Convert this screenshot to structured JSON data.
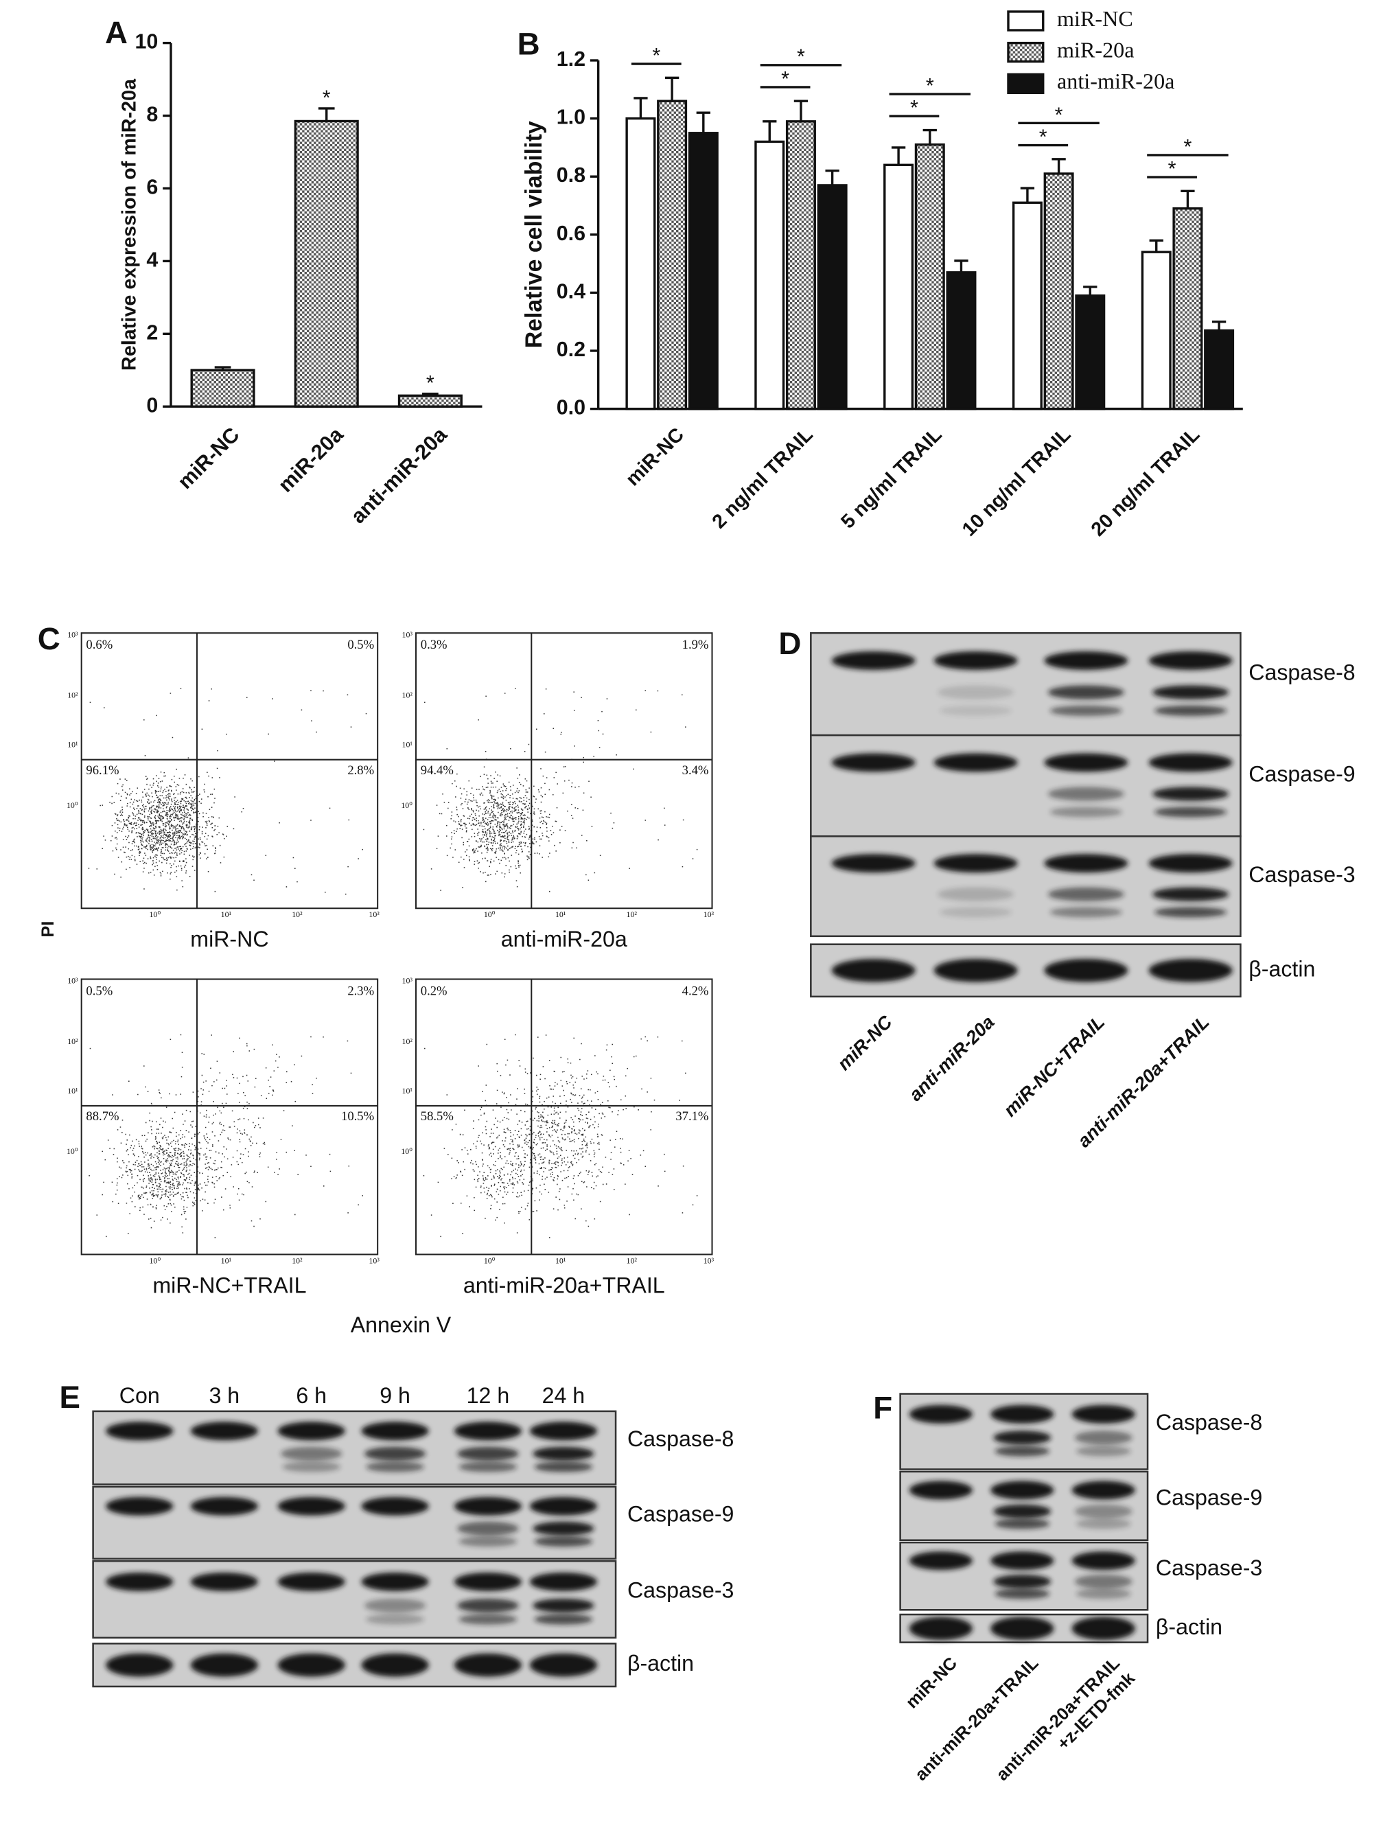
{
  "chart_data": [
    {
      "type": "bar",
      "panel": "A",
      "ylabel": "Relative expression of miR-20a",
      "categories": [
        "miR-NC",
        "miR-20a",
        "anti-miR-20a"
      ],
      "values": [
        1.0,
        7.85,
        0.3
      ],
      "errors": [
        0.08,
        0.35,
        0.05
      ],
      "color": "#555555",
      "pattern": "checkerboard",
      "ylim": [
        0,
        10
      ],
      "yticks": [
        0,
        2,
        4,
        6,
        8,
        10
      ],
      "annotations": [
        {
          "text": "*",
          "category": "miR-20a"
        },
        {
          "text": "*",
          "category": "anti-miR-20a"
        }
      ]
    },
    {
      "type": "grouped_bar",
      "panel": "B",
      "ylabel": "Relative cell viability",
      "categories": [
        "miR-NC",
        "2 ng/ml TRAIL",
        "5 ng/ml TRAIL",
        "10 ng/ml TRAIL",
        "20 ng/ml TRAIL"
      ],
      "series": [
        {
          "name": "miR-NC",
          "color": "#ffffff",
          "values": [
            1.0,
            0.92,
            0.84,
            0.71,
            0.54
          ],
          "errors": [
            0.07,
            0.07,
            0.06,
            0.05,
            0.04
          ]
        },
        {
          "name": "miR-20a",
          "color": "#555555",
          "pattern": "checkerboard",
          "values": [
            1.06,
            0.99,
            0.91,
            0.81,
            0.69
          ],
          "errors": [
            0.08,
            0.07,
            0.05,
            0.05,
            0.06
          ]
        },
        {
          "name": "anti-miR-20a",
          "color": "#111111",
          "values": [
            0.95,
            0.77,
            0.47,
            0.39,
            0.27
          ],
          "errors": [
            0.07,
            0.05,
            0.04,
            0.03,
            0.03
          ]
        }
      ],
      "ylim": [
        0,
        1.2
      ],
      "yticks": [
        {
          "value": 0,
          "label": "0.0"
        },
        0.2,
        0.4,
        0.6,
        0.8,
        {
          "value": 1,
          "label": "1.0"
        },
        1.2
      ],
      "legend": "top-right",
      "annotations": [
        {
          "text": "*",
          "category": "miR-NC",
          "between": [
            "miR-NC",
            "miR-20a"
          ]
        },
        {
          "text": "*",
          "category": "2 ng/ml TRAIL",
          "between": [
            "miR-NC",
            "miR-20a"
          ]
        },
        {
          "text": "*",
          "category": "2 ng/ml TRAIL",
          "between": [
            "miR-NC",
            "anti-miR-20a"
          ]
        },
        {
          "text": "*",
          "category": "5 ng/ml TRAIL",
          "between": [
            "miR-NC",
            "miR-20a"
          ]
        },
        {
          "text": "*",
          "category": "5 ng/ml TRAIL",
          "between": [
            "miR-NC",
            "anti-miR-20a"
          ]
        },
        {
          "text": "*",
          "category": "10 ng/ml TRAIL",
          "between": [
            "miR-NC",
            "miR-20a"
          ]
        },
        {
          "text": "*",
          "category": "10 ng/ml TRAIL",
          "between": [
            "miR-NC",
            "anti-miR-20a"
          ]
        },
        {
          "text": "*",
          "category": "20 ng/ml TRAIL",
          "between": [
            "miR-NC",
            "miR-20a"
          ]
        },
        {
          "text": "*",
          "category": "20 ng/ml TRAIL",
          "between": [
            "miR-NC",
            "anti-miR-20a"
          ]
        }
      ]
    }
  ],
  "flow_cytometry": {
    "panel": "C",
    "ylabel": "PI",
    "xlabel": "Annexin V",
    "axis_ticks": [
      "10⁰",
      "10¹",
      "10²",
      "10³"
    ],
    "plots": [
      {
        "title": "miR-NC",
        "quadrants": {
          "upper_left": "0.6%",
          "upper_right": "0.5%",
          "lower_left": "96.1%",
          "lower_right": "2.8%"
        }
      },
      {
        "title": "anti-miR-20a",
        "quadrants": {
          "upper_left": "0.3%",
          "upper_right": "1.9%",
          "lower_left": "94.4%",
          "lower_right": "3.4%"
        }
      },
      {
        "title": "miR-NC+TRAIL",
        "quadrants": {
          "upper_left": "0.5%",
          "upper_right": "2.3%",
          "lower_left": "88.7%",
          "lower_right": "10.5%"
        }
      },
      {
        "title": "anti-miR-20a+TRAIL",
        "quadrants": {
          "upper_left": "0.2%",
          "upper_right": "4.2%",
          "lower_left": "58.5%",
          "lower_right": "37.1%"
        }
      }
    ]
  },
  "blots": [
    {
      "panel": "D",
      "lanes": [
        "miR-NC",
        "anti-miR-20a",
        "miR-NC+TRAIL",
        "anti-miR-20a+TRAIL"
      ],
      "proteins": [
        "Caspase-8",
        "Caspase-9",
        "Caspase-3",
        "β-actin"
      ]
    },
    {
      "panel": "E",
      "lanes": [
        "Con",
        "3 h",
        "6 h",
        "9 h",
        "12 h",
        "24 h"
      ],
      "proteins": [
        "Caspase-8",
        "Caspase-9",
        "Caspase-3",
        "β-actin"
      ]
    },
    {
      "panel": "F",
      "lanes": [
        [
          "miR-NC"
        ],
        [
          "anti-miR-20a+TRAIL"
        ],
        [
          "anti-miR-20a+TRAIL",
          "+z-IETD-fmk"
        ]
      ],
      "proteins": [
        "Caspase-8",
        "Caspase-9",
        "Caspase-3",
        "β-actin"
      ]
    }
  ]
}
